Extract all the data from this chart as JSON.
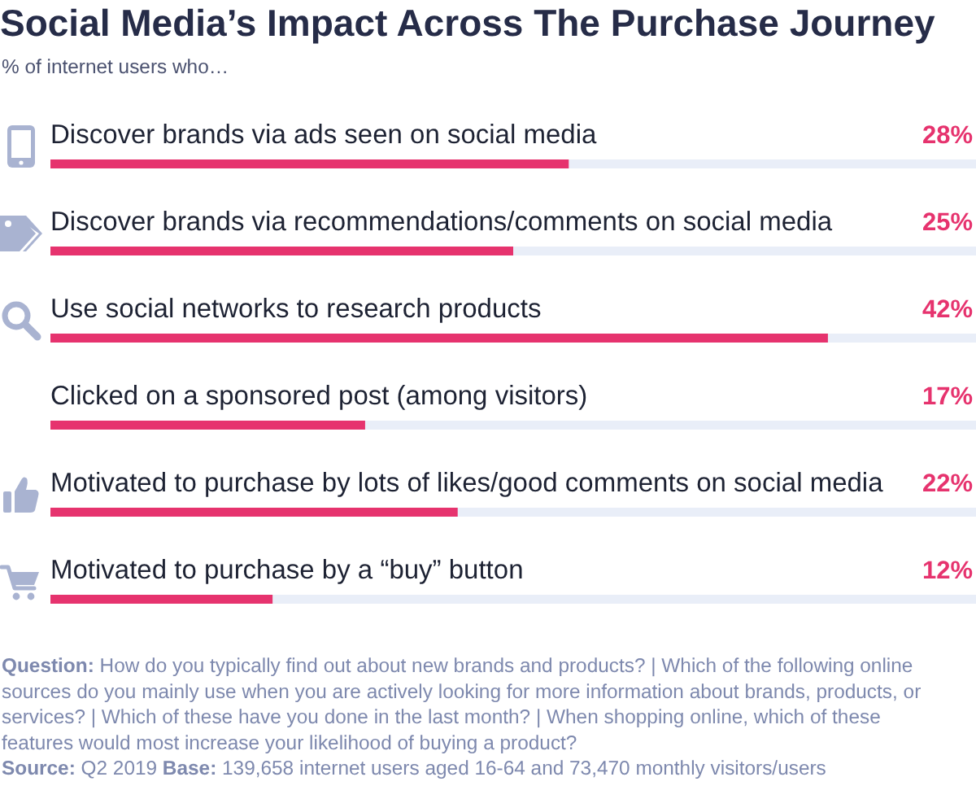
{
  "chart_data": {
    "type": "bar",
    "orientation": "horizontal",
    "title": "Social Media’s Impact Across The Purchase Journey",
    "subtitle": "% of internet users who…",
    "categories": [
      "Discover brands via ads seen on social media",
      "Discover brands via recommendations/comments on social media",
      "Use social networks to research products",
      "Clicked on a sponsored post (among visitors)",
      "Motivated to purchase by lots of likes/good comments on social media",
      "Motivated to purchase by a “buy” button"
    ],
    "values": [
      28,
      25,
      42,
      17,
      22,
      12
    ],
    "value_labels": [
      "28%",
      "25%",
      "42%",
      "17%",
      "22%",
      "12%"
    ],
    "color": "#e6336e",
    "xlim": [
      0,
      50
    ],
    "tick_labels": "y",
    "annotations": [
      "Question: How do you typically find out about new brands and products? | Which of the following online sources do you mainly use when you are actively looking for more information about brands, products, or services? | Which of these have you done in the last month? | When shopping online, which of these features would most increase your likelihood of buying a product?",
      "Source: Q2 2019",
      "Base: 139,658 internet users aged 16-64 and 73,470 monthly visitors/users"
    ]
  }
}
